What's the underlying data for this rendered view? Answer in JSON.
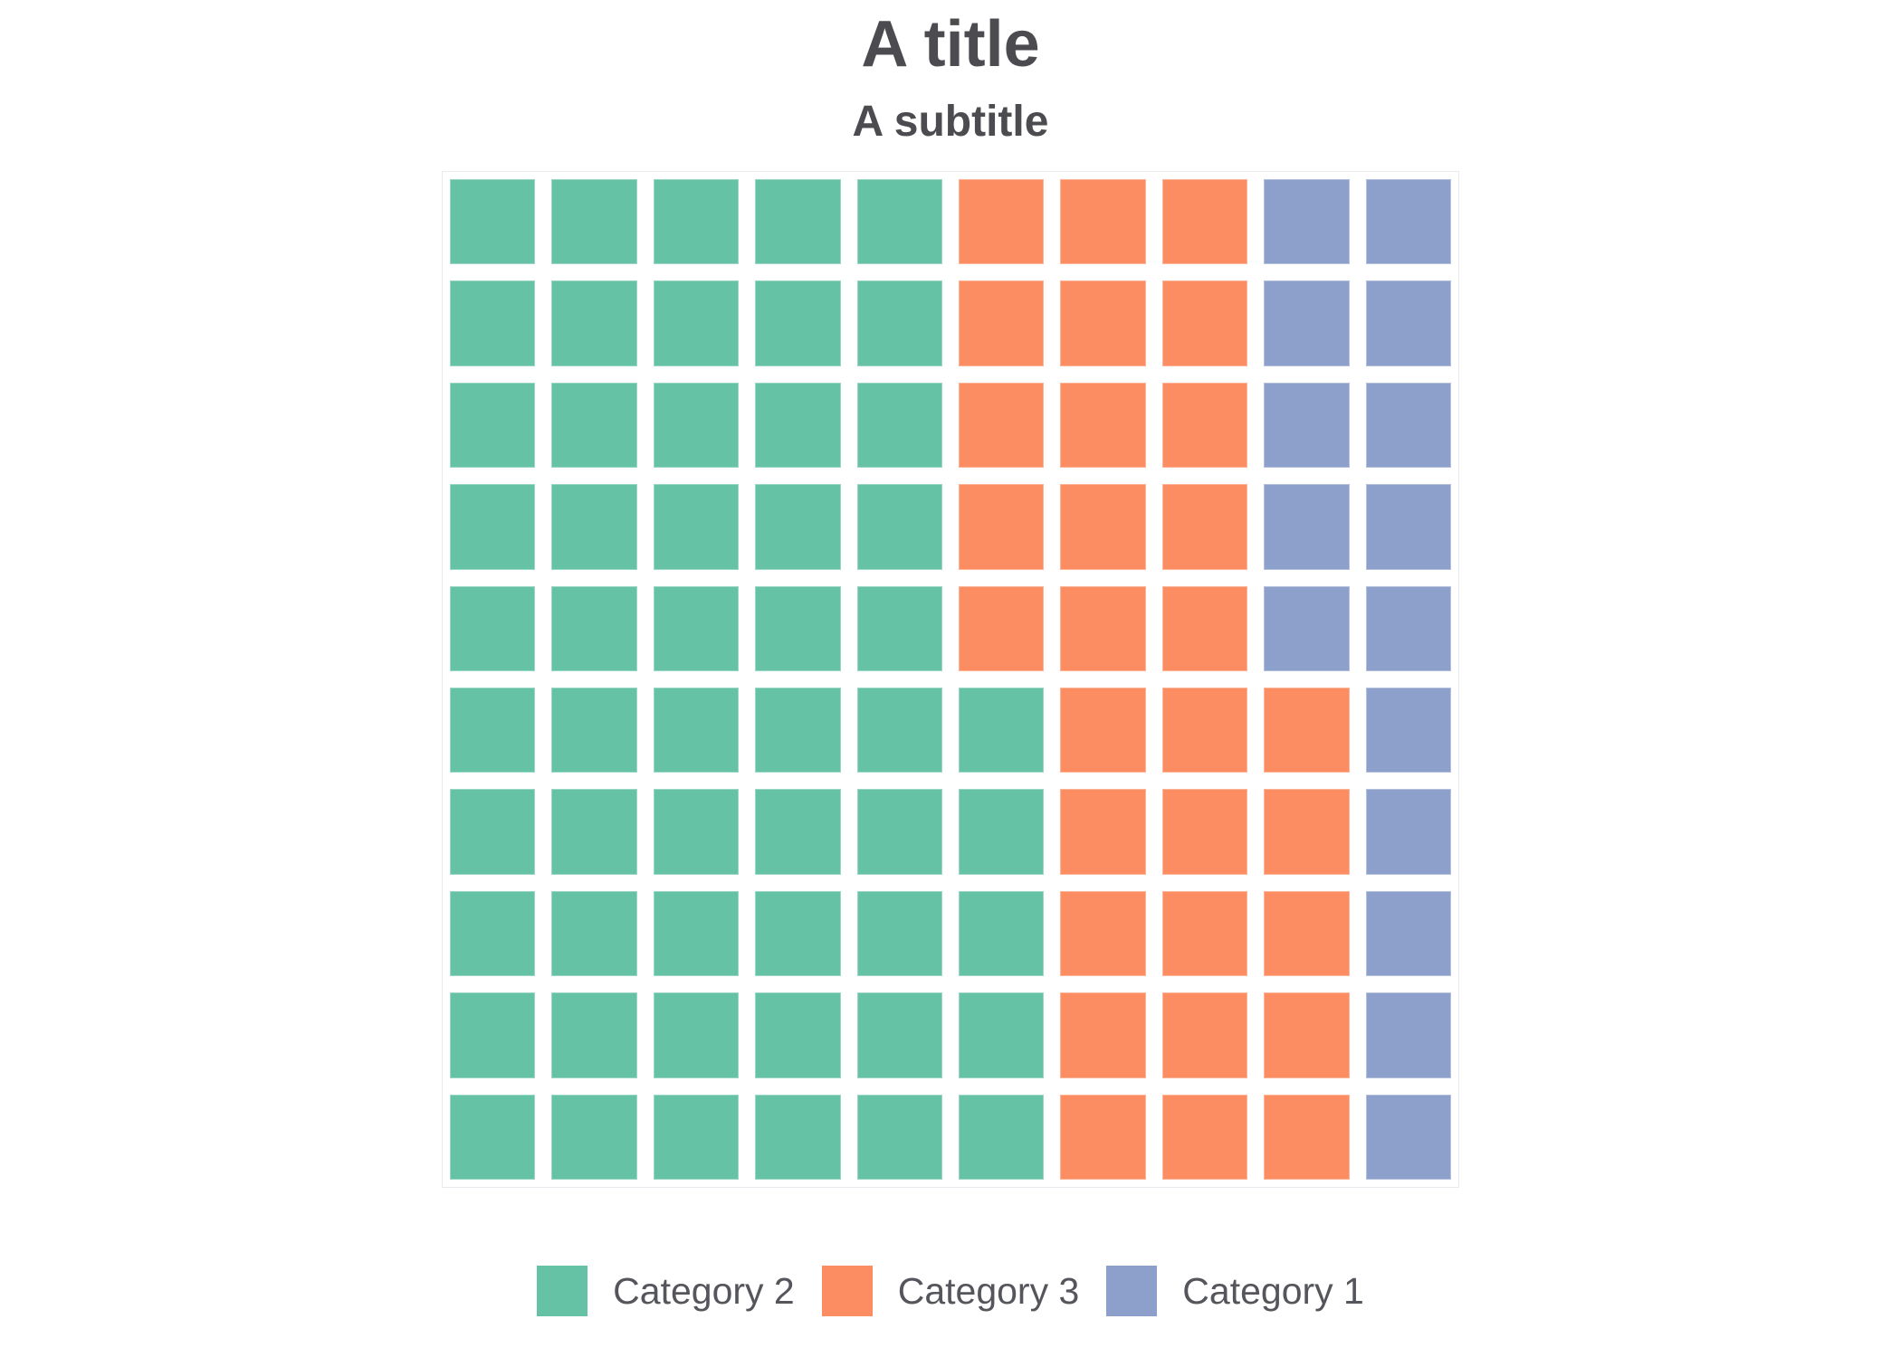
{
  "chart_data": {
    "type": "waffle",
    "title": "A title",
    "subtitle": "A subtitle",
    "grid_rows": 10,
    "grid_cols": 10,
    "total_cells": 100,
    "fill_order": "column-major, bottom-to-top, left-to-right",
    "legend_position": "bottom",
    "categories": [
      {
        "name": "Category 2",
        "cells": 55,
        "percent": 55,
        "color": "#66c2a5"
      },
      {
        "name": "Category 3",
        "cells": 30,
        "percent": 30,
        "color": "#fc8d62"
      },
      {
        "name": "Category 1",
        "cells": 15,
        "percent": 15,
        "color": "#8da0cb"
      }
    ],
    "matrix": [
      [
        0,
        0,
        0,
        0,
        0,
        1,
        1,
        1,
        2,
        2
      ],
      [
        0,
        0,
        0,
        0,
        0,
        1,
        1,
        1,
        2,
        2
      ],
      [
        0,
        0,
        0,
        0,
        0,
        1,
        1,
        1,
        2,
        2
      ],
      [
        0,
        0,
        0,
        0,
        0,
        1,
        1,
        1,
        2,
        2
      ],
      [
        0,
        0,
        0,
        0,
        0,
        1,
        1,
        1,
        2,
        2
      ],
      [
        0,
        0,
        0,
        0,
        0,
        0,
        1,
        1,
        1,
        2
      ],
      [
        0,
        0,
        0,
        0,
        0,
        0,
        1,
        1,
        1,
        2
      ],
      [
        0,
        0,
        0,
        0,
        0,
        0,
        1,
        1,
        1,
        2
      ],
      [
        0,
        0,
        0,
        0,
        0,
        0,
        1,
        1,
        1,
        2
      ],
      [
        0,
        0,
        0,
        0,
        0,
        0,
        1,
        1,
        1,
        2
      ]
    ]
  },
  "styles": {
    "title_color": "#4c4c50",
    "subtitle_color": "#4c4c50",
    "legend_text_color": "#55565c",
    "panel_border_color": "#e9eaef",
    "background_color": "#ffffff"
  }
}
